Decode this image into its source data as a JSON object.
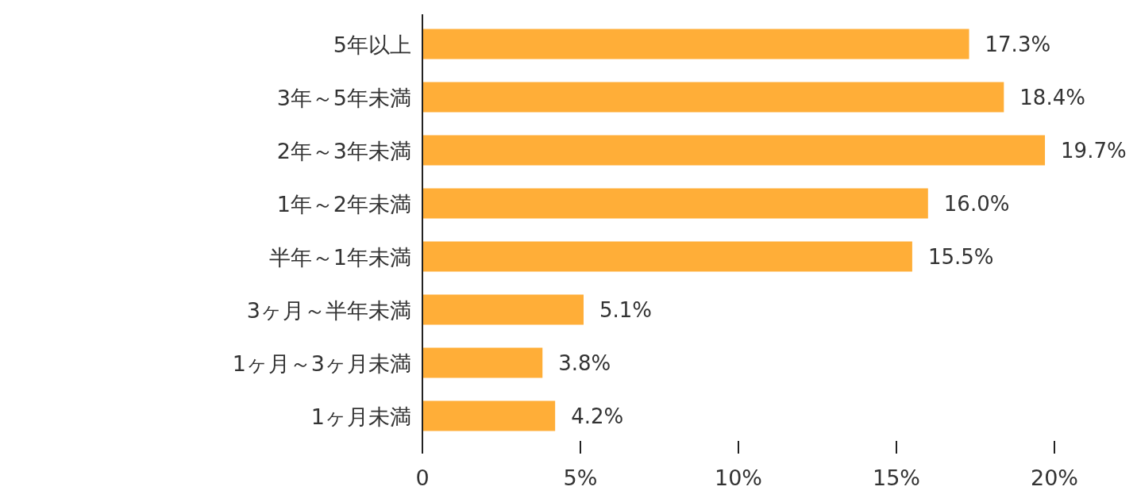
{
  "chart_data": {
    "type": "bar",
    "orientation": "horizontal",
    "categories": [
      "5年以上",
      "3年～5年未満",
      "2年～3年未満",
      "1年～2年未満",
      "半年～1年未満",
      "3ヶ月～半年未満",
      "1ヶ月～3ヶ月未満",
      "1ヶ月未満"
    ],
    "values": [
      17.3,
      18.4,
      19.7,
      16.0,
      15.5,
      5.1,
      3.8,
      4.2
    ],
    "value_labels": [
      "17.3%",
      "18.4%",
      "19.7%",
      "16.0%",
      "15.5%",
      "5.1%",
      "3.8%",
      "4.2%"
    ],
    "color": "#ffae38",
    "xlim": [
      0,
      20
    ],
    "xticks": [
      0,
      {
        "value": 5,
        "label": "5%"
      },
      {
        "value": 10,
        "label": "10%"
      },
      {
        "value": 15,
        "label": "15%"
      },
      {
        "value": 20,
        "label": "20%"
      }
    ],
    "grid": false
  }
}
